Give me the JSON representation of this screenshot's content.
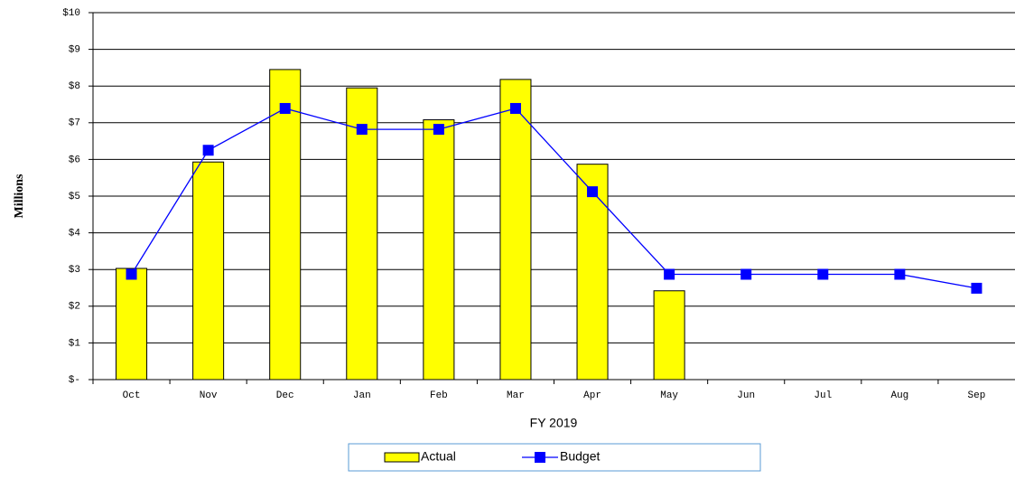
{
  "chart_data": {
    "type": "bar-line",
    "y_axis_label": "Millions",
    "x_axis_label": "FY 2019",
    "categories": [
      "Oct",
      "Nov",
      "Dec",
      "Jan",
      "Feb",
      "Mar",
      "Apr",
      "May",
      "Jun",
      "Jul",
      "Aug",
      "Sep"
    ],
    "series": [
      {
        "name": "Actual",
        "type": "bar",
        "color": "#ffff00",
        "values": [
          3.03,
          5.93,
          8.45,
          7.95,
          7.08,
          8.18,
          5.87,
          2.42,
          null,
          null,
          null,
          null
        ]
      },
      {
        "name": "Budget",
        "type": "line",
        "color": "#0000ff",
        "values": [
          2.87,
          6.25,
          7.39,
          6.82,
          6.82,
          7.39,
          5.12,
          2.87,
          2.87,
          2.87,
          2.87,
          2.49
        ]
      }
    ],
    "ylim": [
      0,
      10
    ],
    "yticks": [
      {
        "value": 0,
        "label": "$-"
      },
      {
        "value": 1,
        "label": "$1"
      },
      {
        "value": 2,
        "label": "$2"
      },
      {
        "value": 3,
        "label": "$3"
      },
      {
        "value": 4,
        "label": "$4"
      },
      {
        "value": 5,
        "label": "$5"
      },
      {
        "value": 6,
        "label": "$6"
      },
      {
        "value": 7,
        "label": "$7"
      },
      {
        "value": 8,
        "label": "$8"
      },
      {
        "value": 9,
        "label": "$9"
      },
      {
        "value": 10,
        "label": "$10"
      }
    ],
    "grid": true,
    "legend": "bottom"
  }
}
